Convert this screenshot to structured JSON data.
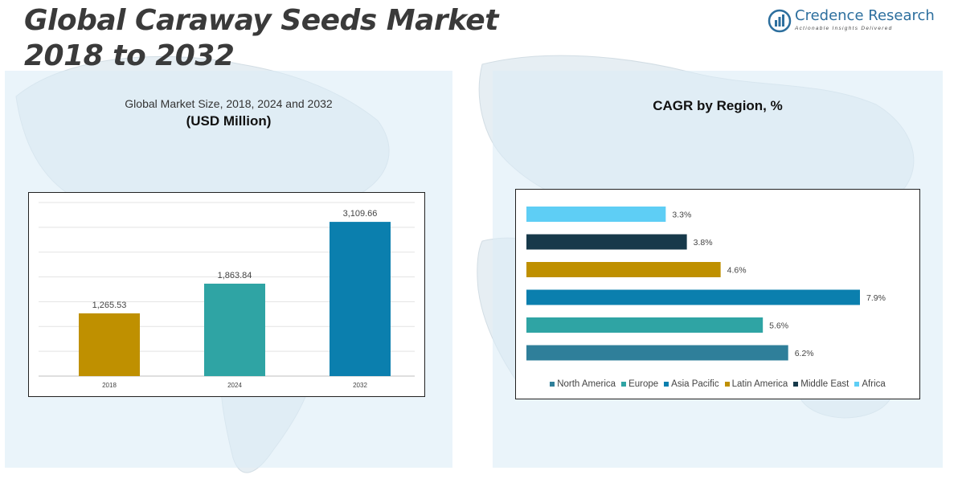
{
  "header": {
    "title_line1": "Global Caraway Seeds Market",
    "title_line2": "2018 to 2032"
  },
  "logo": {
    "name": "Credence Research",
    "tagline": "Actionable Insights Delivered",
    "icon": "bar-chart-circle-icon"
  },
  "left_panel": {
    "subtitle": "Global Market Size, 2018, 2024 and 2032",
    "unit": "(USD Million)"
  },
  "right_panel": {
    "title": "CAGR by Region, %"
  },
  "colors": {
    "gold": "#bf9000",
    "teal": "#2fa4a4",
    "blue": "#0b7fae",
    "dark": "#17394a",
    "sky": "#5ecef5",
    "steel": "#2f7f9a",
    "title": "#3a3a3a"
  },
  "chart_data": [
    {
      "type": "bar",
      "title": "Global Market Size, 2018, 2024 and 2032",
      "ylabel": "USD Million",
      "categories": [
        "2018",
        "2024",
        "2032"
      ],
      "values": [
        1265.53,
        1863.84,
        3109.66
      ],
      "labels": [
        "1,265.53",
        "1,863.84",
        "3,109.66"
      ],
      "colors": [
        "#bf9000",
        "#2fa4a4",
        "#0b7fae"
      ],
      "ylim": [
        0,
        3500
      ],
      "grid": true
    },
    {
      "type": "bar",
      "orientation": "horizontal",
      "title": "CAGR by Region, %",
      "categories": [
        "Africa",
        "Middle East",
        "Latin America",
        "Asia Pacific",
        "Europe",
        "North America"
      ],
      "values": [
        3.3,
        3.8,
        4.6,
        7.9,
        5.6,
        6.2
      ],
      "labels": [
        "3.3%",
        "3.8%",
        "4.6%",
        "7.9%",
        "5.6%",
        "6.2%"
      ],
      "colors": [
        "#5ecef5",
        "#17394a",
        "#bf9000",
        "#0b7fae",
        "#2fa4a4",
        "#2f7f9a"
      ],
      "xlim": [
        0,
        7.9
      ],
      "legend": {
        "position": "bottom",
        "entries": [
          {
            "label": "North America",
            "color": "#2f7f9a"
          },
          {
            "label": "Europe",
            "color": "#2fa4a4"
          },
          {
            "label": "Asia Pacific",
            "color": "#0b7fae"
          },
          {
            "label": "Latin America",
            "color": "#bf9000"
          },
          {
            "label": "Middle East",
            "color": "#17394a"
          },
          {
            "label": "Africa",
            "color": "#5ecef5"
          }
        ]
      }
    }
  ]
}
